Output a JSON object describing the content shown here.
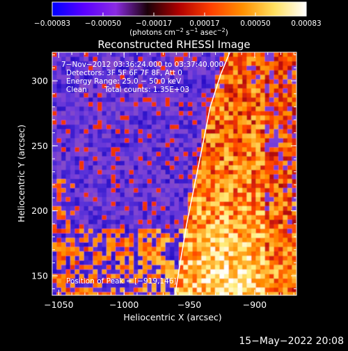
{
  "colorbar": {
    "ticks": [
      "−0.00083",
      "−0.00050",
      "−0.00017",
      "0.00017",
      "0.00050",
      "0.00083"
    ],
    "unit_prefix": "(photons cm",
    "unit_sup1": "−2",
    "unit_mid": " s",
    "unit_sup2": "−1",
    "unit_mid2": " asec",
    "unit_sup3": "−2",
    "unit_suffix": ")",
    "stops": [
      "#0000ff",
      "#5a00ff",
      "#8a2be2",
      "#1a0008",
      "#b00000",
      "#ff4000",
      "#ff9000",
      "#ffe060",
      "#ffffff"
    ]
  },
  "annotations": {
    "time_range": "7−Nov−2012 03:36:24.000 to 03:37:40.000",
    "detectors": "Detectors: 3F 5F 6F 7F 8F, Att 0",
    "energy": "Energy Range: 25.0 − 50.0 keV",
    "method": "Clean",
    "counts": "Total counts: 1.35E+03",
    "peak": "Position of Peak = [−919,146]"
  },
  "footer": {
    "date": "15−May−2022 20:08"
  },
  "chart_data": {
    "type": "heatmap",
    "title": "Reconstructed RHESSI Image",
    "xlabel": "Heliocentric X (arcsec)",
    "ylabel": "Heliocentric Y (arcsec)",
    "xlim": [
      -1055,
      -868
    ],
    "ylim": [
      135,
      322
    ],
    "xticks": [
      -1050,
      -1000,
      -950,
      -900
    ],
    "yticks": [
      150,
      200,
      250,
      300
    ],
    "xtick_labels": [
      "−1050",
      "−1000",
      "−950",
      "−900"
    ],
    "ytick_labels": [
      "150",
      "200",
      "250",
      "300"
    ],
    "color_range": [
      -0.00083,
      0.00083
    ],
    "limb_curve": [
      [
        -961,
        135
      ],
      [
        -957,
        160
      ],
      [
        -952,
        190
      ],
      [
        -946,
        220
      ],
      [
        -940,
        250
      ],
      [
        -934,
        280
      ],
      [
        -926,
        305
      ],
      [
        -919,
        322
      ]
    ],
    "peak": [
      -919,
      146
    ]
  }
}
